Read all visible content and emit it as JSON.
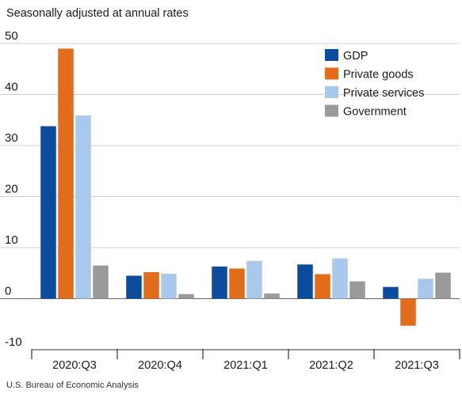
{
  "chart_data": {
    "type": "bar",
    "subtitle": "Seasonally adjusted at annual rates",
    "source": "U.S. Bureau of Economic Analysis",
    "categories": [
      "2020:Q3",
      "2020:Q4",
      "2021:Q1",
      "2021:Q2",
      "2021:Q3"
    ],
    "series": [
      {
        "name": "GDP",
        "color": "#0b4c9c",
        "values": [
          33.8,
          4.5,
          6.3,
          6.7,
          2.3
        ]
      },
      {
        "name": "Private goods",
        "color": "#e06c1c",
        "values": [
          49.0,
          5.2,
          5.9,
          4.8,
          -5.3
        ]
      },
      {
        "name": "Private services",
        "color": "#a9c8ec",
        "values": [
          35.9,
          4.9,
          7.4,
          7.9,
          3.9
        ]
      },
      {
        "name": "Government",
        "color": "#9a9a9a",
        "values": [
          6.5,
          0.9,
          1.0,
          3.4,
          5.1
        ]
      }
    ],
    "yticks": [
      -10,
      0,
      10,
      20,
      30,
      40,
      50
    ],
    "ylim": [
      -10,
      50
    ],
    "grid": true,
    "legend_position": "top-right"
  }
}
